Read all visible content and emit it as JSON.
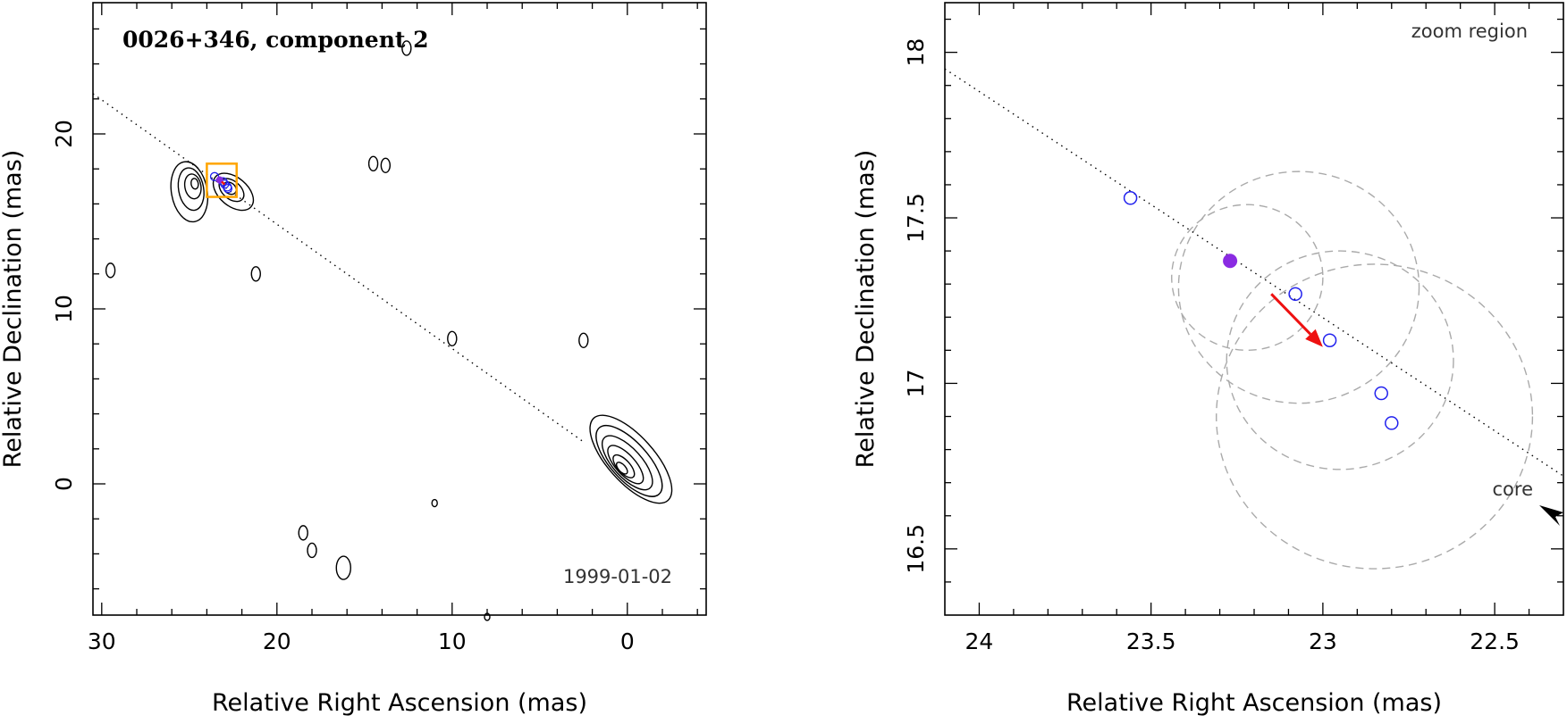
{
  "chart_data": [
    {
      "type": "scatter",
      "subtype": "radio contour map",
      "title": "0026+346, component 2",
      "date": "1999-01-02",
      "xlabel": "Relative Right Ascension (mas)",
      "ylabel": "Relative Declination (mas)",
      "xlim": [
        30.5,
        -4.5
      ],
      "ylim": [
        -7.5,
        27.5
      ],
      "x_ticks": [
        "30",
        "20",
        "10",
        "0"
      ],
      "y_ticks": [
        "0",
        "10",
        "20"
      ],
      "jet_axis": {
        "x": [
          30.5,
          2.5
        ],
        "y": [
          22.3,
          2.4
        ]
      },
      "component_box": {
        "x": [
          24,
          22.3
        ],
        "y": [
          16.4,
          18.3
        ],
        "color": "#ffa500"
      },
      "component_positions": {
        "x": [
          23.56,
          23.08,
          22.98,
          22.83,
          22.8
        ],
        "y": [
          17.56,
          17.27,
          17.13,
          16.97,
          16.88
        ]
      },
      "mean_position": {
        "x": 23.27,
        "y": 17.37
      },
      "contour_islands": [
        {
          "x": 0,
          "y": 1
        },
        {
          "x": 25,
          "y": 17
        },
        {
          "x": 23,
          "y": 17
        },
        {
          "x": 14.5,
          "y": 18.3
        },
        {
          "x": 13.8,
          "y": 18.2
        },
        {
          "x": 29.5,
          "y": 12.2
        },
        {
          "x": 21.2,
          "y": 12
        },
        {
          "x": 10,
          "y": 8.3
        },
        {
          "x": 2.5,
          "y": 8.2
        },
        {
          "x": 11,
          "y": -1.1
        },
        {
          "x": 18.5,
          "y": -2.8
        },
        {
          "x": 18,
          "y": -3.8
        },
        {
          "x": 16.2,
          "y": -4.8
        },
        {
          "x": 12.6,
          "y": 24.9
        },
        {
          "x": 8,
          "y": -7.6
        }
      ]
    },
    {
      "type": "scatter",
      "subtype": "zoom of component positions",
      "annotation": "zoom region",
      "core_label": "core",
      "xlabel": "Relative Right Ascension (mas)",
      "ylabel": "Relative Declination (mas)",
      "xlim": [
        24.1,
        22.3
      ],
      "ylim": [
        16.3,
        18.15
      ],
      "x_ticks": [
        "24",
        "23.5",
        "23",
        "22.5"
      ],
      "y_ticks": [
        "16.5",
        "17",
        "17.5",
        "18"
      ],
      "jet_axis": {
        "x": [
          24.1,
          22.3
        ],
        "y": [
          17.95,
          16.72
        ]
      },
      "component_positions": {
        "x": [
          23.56,
          23.08,
          22.98,
          22.83,
          22.8
        ],
        "y": [
          17.56,
          17.27,
          17.13,
          16.97,
          16.88
        ]
      },
      "mean_position": {
        "x": 23.27,
        "y": 17.37
      },
      "motion_arrow": {
        "x": [
          23.15,
          23.0
        ],
        "y": [
          17.27,
          17.11
        ]
      },
      "error_circles": [
        {
          "x": 23.22,
          "y": 17.32,
          "r": 0.22
        },
        {
          "x": 23.07,
          "y": 17.29,
          "r": 0.35
        },
        {
          "x": 22.95,
          "y": 17.07,
          "r": 0.33
        },
        {
          "x": 22.85,
          "y": 16.9,
          "r": 0.46
        }
      ],
      "colors": {
        "positions": "#2222ee",
        "mean": "#8a2be2",
        "arrow": "#ee1111",
        "circles": "#aaaaaa",
        "box": "#ffa500"
      }
    }
  ]
}
